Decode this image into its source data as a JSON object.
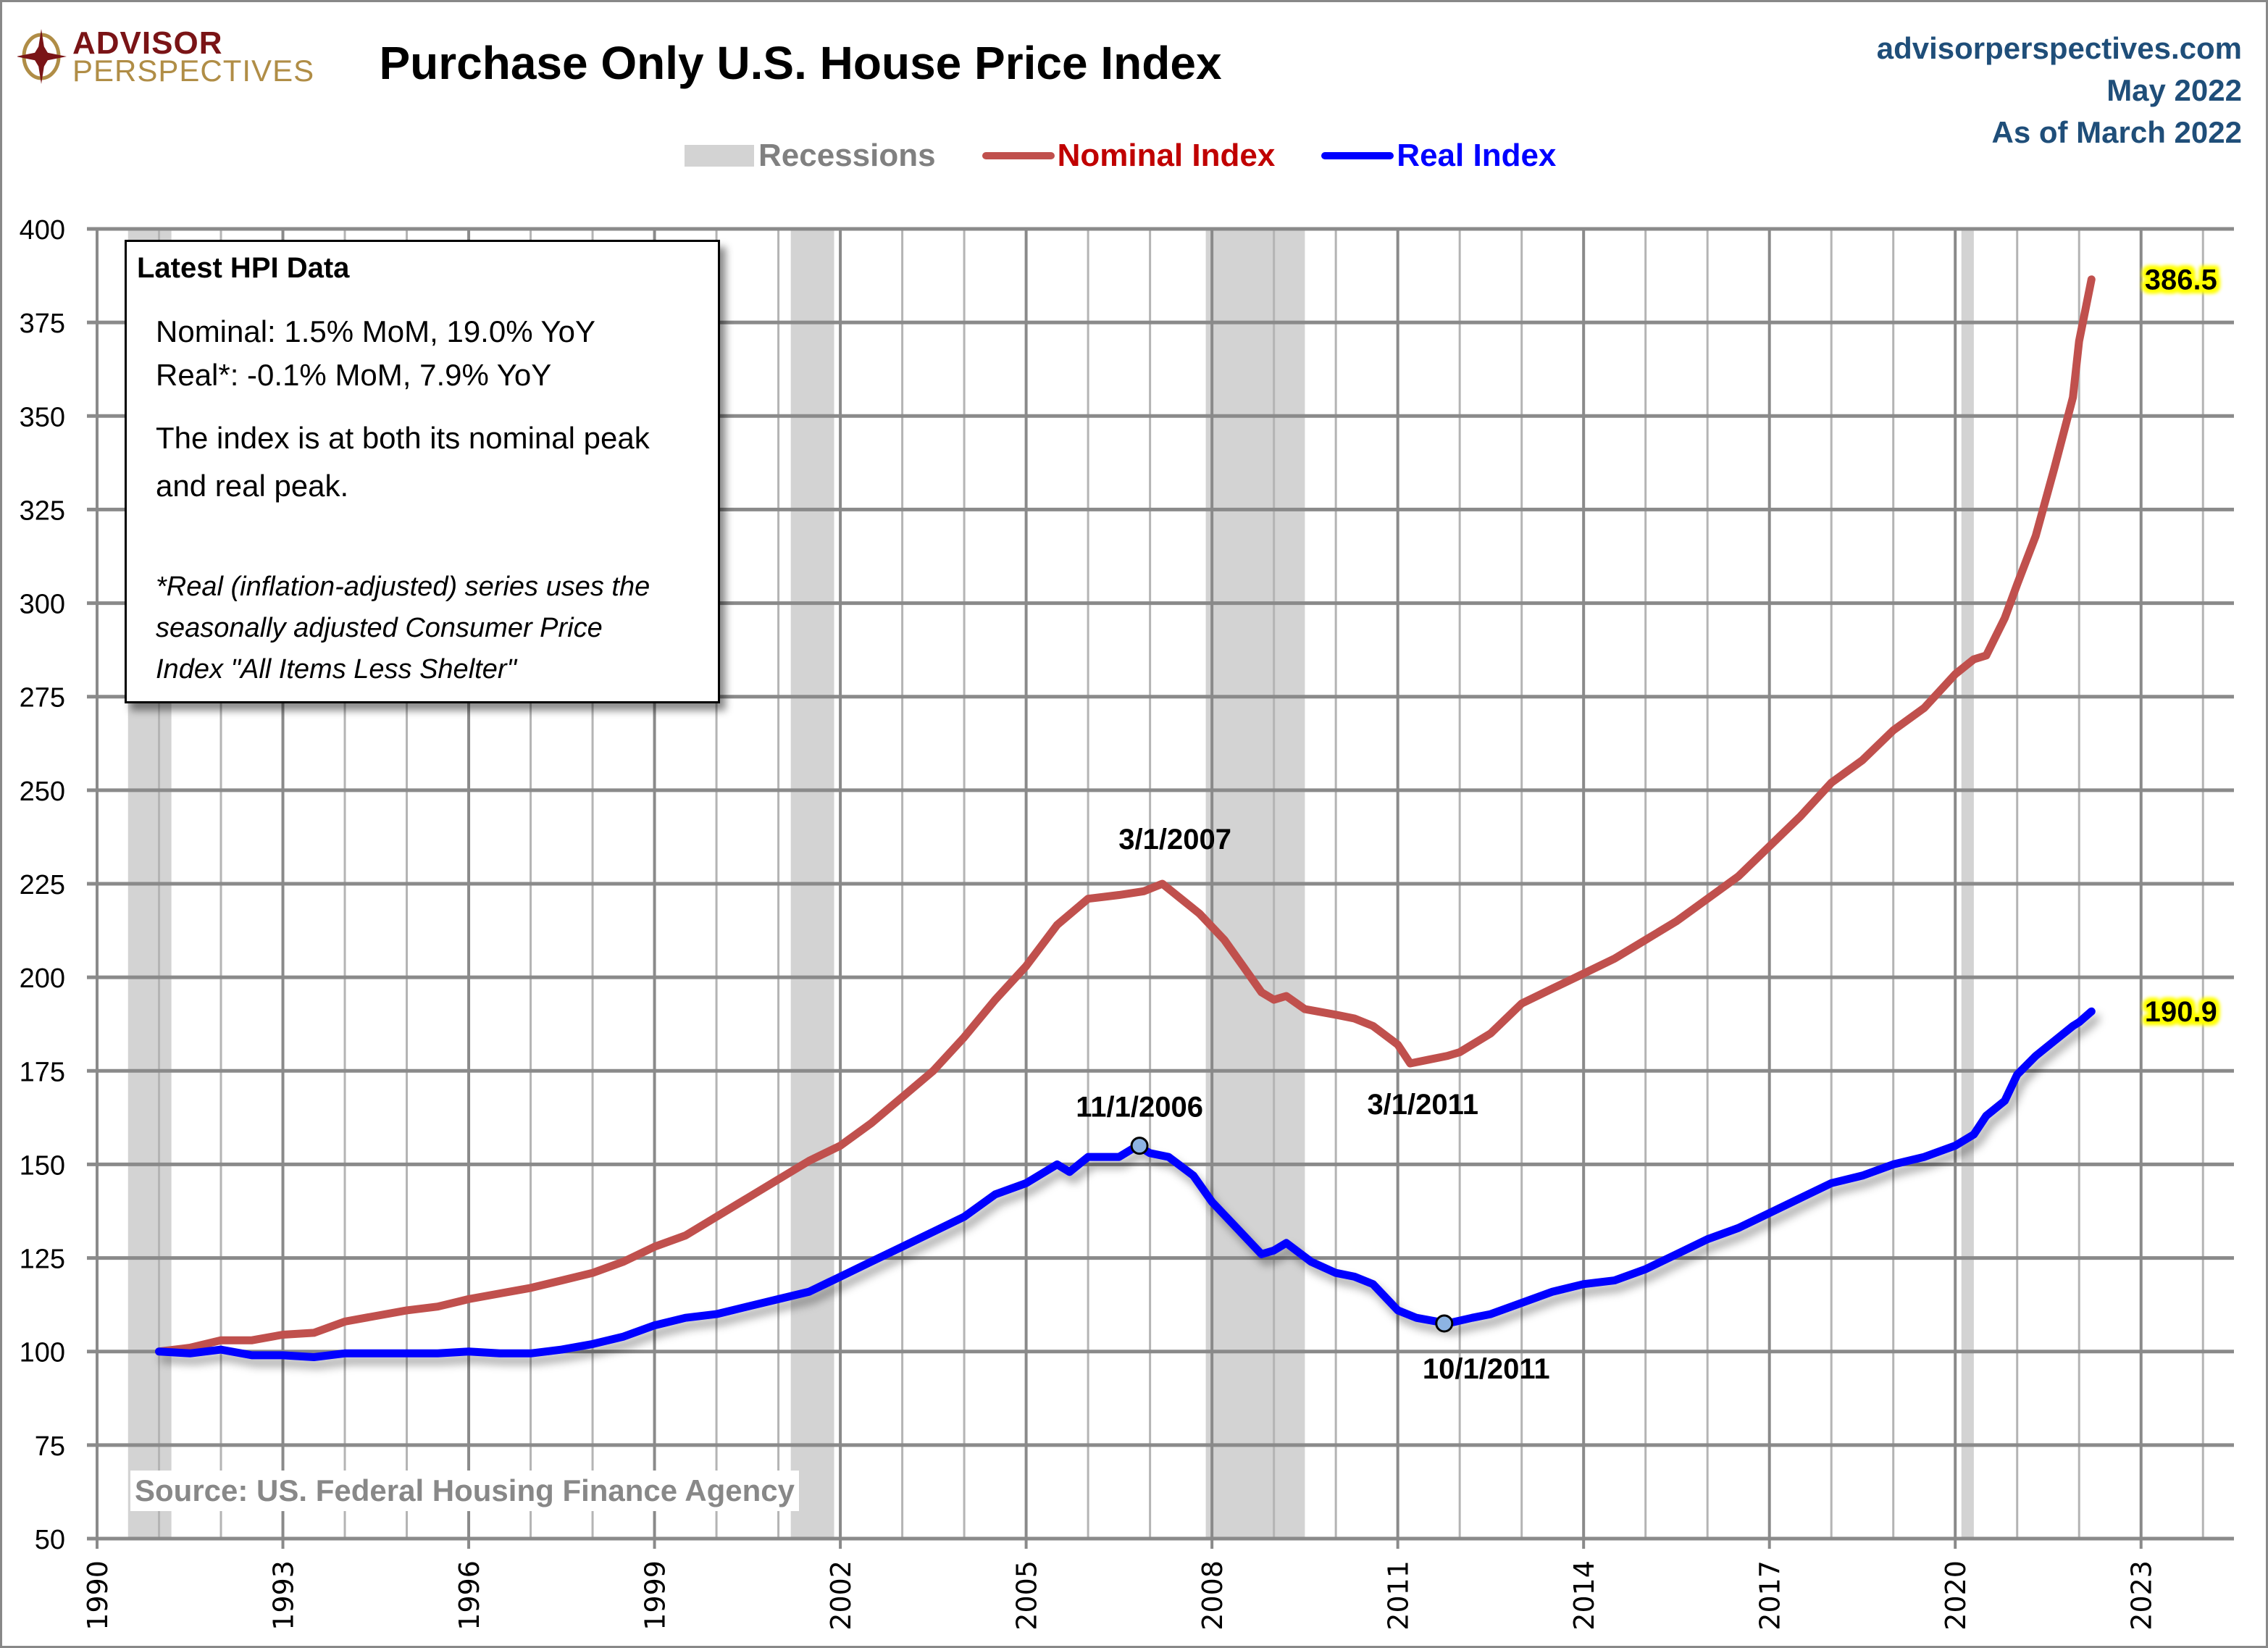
{
  "header": {
    "logo_top": "ADVISOR",
    "logo_bottom": "PERSPECTIVES",
    "site": "advisorperspectives.com",
    "date": "May 2022",
    "as_of": "As of March 2022"
  },
  "info_box": {
    "title": "Latest HPI Data",
    "nominal": "Nominal:  1.5% MoM, 19.0% YoY",
    "real": "Real*:  -0.1% MoM, 7.9% YoY",
    "peak_line1": "The index is at both its nominal peak",
    "peak_line2": "and real peak.",
    "foot_line1": "*Real (inflation-adjusted) series uses the",
    "foot_line2": "seasonally adjusted Consumer Price",
    "foot_line3": "Index \"All Items Less Shelter\""
  },
  "source": "Source: US. Federal Housing Finance Agency",
  "colors": {
    "nominal": "#c0504d",
    "real": "#0000ff",
    "recession": "#d3d3d3",
    "legend_nominal_text": "#c00000",
    "legend_real_text": "#0000ff",
    "legend_recession_text": "#808080",
    "label_highlight": "#ffff00",
    "marker_fill": "#8db3e2"
  },
  "chart_data": {
    "type": "line",
    "title": "Purchase Only U.S. House Price Index",
    "xlabel": "",
    "ylabel": "",
    "xlim": [
      1990,
      2024.5
    ],
    "ylim": [
      50,
      400
    ],
    "grid": true,
    "legend_position": "top",
    "x_ticks": [
      "1990",
      "1993",
      "1996",
      "1999",
      "2002",
      "2005",
      "2008",
      "2011",
      "2014",
      "2017",
      "2020",
      "2023"
    ],
    "y_ticks": [
      "400",
      "375",
      "350",
      "325",
      "300",
      "275",
      "250",
      "225",
      "200",
      "175",
      "150",
      "125",
      "100",
      "75",
      "50"
    ],
    "legend": [
      "Recessions",
      "Nominal Index",
      "Real Index"
    ],
    "recessions": [
      [
        1990.5,
        1991.2
      ],
      [
        2001.2,
        2001.9
      ],
      [
        2007.9,
        2009.5
      ],
      [
        2020.1,
        2020.3
      ]
    ],
    "series": [
      {
        "name": "Nominal Index",
        "x": [
          1991.0,
          1991.5,
          1992.0,
          1992.5,
          1993.0,
          1993.5,
          1994.0,
          1994.5,
          1995.0,
          1995.5,
          1996.0,
          1996.5,
          1997.0,
          1997.5,
          1998.0,
          1998.5,
          1999.0,
          1999.5,
          2000.0,
          2000.5,
          2001.0,
          2001.5,
          2002.0,
          2002.5,
          2003.0,
          2003.5,
          2004.0,
          2004.5,
          2005.0,
          2005.5,
          2006.0,
          2006.5,
          2006.9,
          2007.2,
          2007.5,
          2007.8,
          2008.2,
          2008.5,
          2008.8,
          2009.0,
          2009.2,
          2009.5,
          2010.0,
          2010.3,
          2010.6,
          2011.0,
          2011.2,
          2011.5,
          2011.8,
          2012.0,
          2012.5,
          2013.0,
          2013.5,
          2014.0,
          2014.5,
          2015.0,
          2015.5,
          2016.0,
          2016.5,
          2017.0,
          2017.5,
          2018.0,
          2018.5,
          2019.0,
          2019.5,
          2020.0,
          2020.3,
          2020.5,
          2020.8,
          2021.0,
          2021.3,
          2021.6,
          2021.9,
          2022.0,
          2022.2
        ],
        "values": [
          100,
          101,
          103,
          103,
          104.5,
          105,
          108,
          109.5,
          111,
          112,
          114,
          115.5,
          117,
          119,
          121,
          124,
          128,
          131,
          136,
          141,
          146,
          151,
          155,
          161,
          168,
          175,
          184,
          194,
          203,
          214,
          221,
          222,
          223,
          225,
          221,
          217,
          210,
          203,
          196,
          194,
          195,
          191.5,
          190,
          189,
          187,
          182,
          177,
          178,
          179,
          180,
          185,
          193,
          197,
          201,
          205,
          210,
          215,
          221,
          227,
          235,
          243,
          252,
          258,
          266,
          272,
          281,
          285,
          286,
          296,
          305,
          318,
          336,
          355,
          370,
          386.5
        ]
      },
      {
        "name": "Real Index",
        "x": [
          1991.0,
          1991.5,
          1992.0,
          1992.5,
          1993.0,
          1993.5,
          1994.0,
          1994.5,
          1995.0,
          1995.5,
          1996.0,
          1996.5,
          1997.0,
          1997.5,
          1998.0,
          1998.5,
          1999.0,
          1999.5,
          2000.0,
          2000.5,
          2001.0,
          2001.5,
          2002.0,
          2002.5,
          2003.0,
          2003.5,
          2004.0,
          2004.5,
          2005.0,
          2005.5,
          2005.7,
          2006.0,
          2006.5,
          2006.8,
          2007.0,
          2007.3,
          2007.7,
          2008.0,
          2008.4,
          2008.8,
          2009.0,
          2009.2,
          2009.6,
          2010.0,
          2010.3,
          2010.6,
          2011.0,
          2011.3,
          2011.8,
          2012.2,
          2012.5,
          2013.0,
          2013.5,
          2014.0,
          2014.5,
          2015.0,
          2015.5,
          2016.0,
          2016.5,
          2017.0,
          2017.5,
          2018.0,
          2018.5,
          2019.0,
          2019.5,
          2020.0,
          2020.3,
          2020.5,
          2020.8,
          2021.0,
          2021.3,
          2021.6,
          2021.9,
          2022.0,
          2022.2
        ],
        "values": [
          100,
          99.5,
          100.5,
          99,
          99,
          98.5,
          99.5,
          99.5,
          99.5,
          99.5,
          100,
          99.5,
          99.5,
          100.5,
          102,
          104,
          107,
          109,
          110,
          112,
          114,
          116,
          120,
          124,
          128,
          132,
          136,
          142,
          145,
          150,
          148,
          152,
          152,
          155,
          153,
          152,
          147,
          140,
          133,
          126,
          127,
          129,
          124,
          121,
          120,
          118,
          111,
          109,
          107.5,
          109,
          110,
          113,
          116,
          118,
          119,
          122,
          126,
          130,
          133,
          137,
          141,
          145,
          147,
          150,
          152,
          155,
          158,
          163,
          167,
          174,
          179,
          183,
          187,
          188,
          190.9
        ]
      }
    ],
    "annotations": [
      {
        "text": "3/1/2007",
        "series": "Nominal Index",
        "x": 2007.17,
        "y": 225
      },
      {
        "text": "3/1/2011",
        "series": "Nominal Index",
        "x": 2011.17,
        "y": 177
      },
      {
        "text": "11/1/2006",
        "series": "Real Index",
        "x": 2006.83,
        "y": 155
      },
      {
        "text": "10/1/2011",
        "series": "Real Index",
        "x": 2011.75,
        "y": 107.5
      },
      {
        "text": "386.5",
        "series": "Nominal Index",
        "x": 2022.17,
        "y": 386.5
      },
      {
        "text": "190.9",
        "series": "Real Index",
        "x": 2022.17,
        "y": 190.9
      }
    ]
  }
}
